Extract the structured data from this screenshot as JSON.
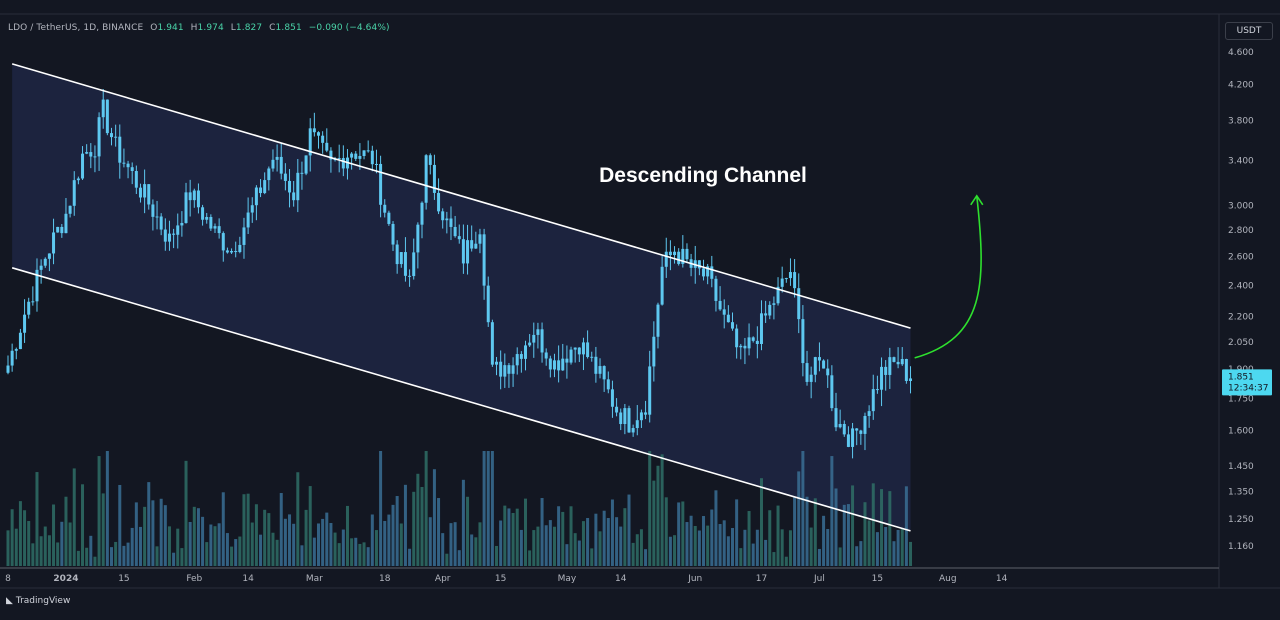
{
  "header": {
    "symbol": "LDO / TetherUS, 1D, BINANCE",
    "o_label": "O",
    "o_value": "1.941",
    "h_label": "H",
    "h_value": "1.974",
    "l_label": "L",
    "l_value": "1.827",
    "c_label": "C",
    "c_value": "1.851",
    "change": "−0.090 (−4.64%)"
  },
  "currency": "USDT",
  "brand": "TradingView",
  "colors": {
    "background": "#131722",
    "channel_fill": "#1c2440",
    "channel_line": "#ffffff",
    "candle": "#5ec8f0",
    "volume": "#3a6f94",
    "volume_alt": "#2f6f66",
    "arrow": "#2ee02e",
    "price_label_bg": "#4dd8f0"
  },
  "chart_data": {
    "type": "candlestick",
    "annotation": "Descending Channel",
    "y_scale": "log",
    "y_ticks": [
      "4.600",
      "4.200",
      "3.800",
      "3.400",
      "3.000",
      "2.800",
      "2.600",
      "2.400",
      "2.200",
      "2.050",
      "1.900",
      "1.750",
      "1.600",
      "1.450",
      "1.350",
      "1.250",
      "1.160"
    ],
    "x_ticks": [
      "8",
      "2024",
      "15",
      "Feb",
      "14",
      "Mar",
      "18",
      "Apr",
      "15",
      "May",
      "14",
      "Jun",
      "17",
      "Jul",
      "15",
      "Aug",
      "14"
    ],
    "x_tick_dates": [
      "2023-12-18",
      "2024-01-01",
      "2024-01-15",
      "2024-02-01",
      "2024-02-14",
      "2024-03-01",
      "2024-03-18",
      "2024-04-01",
      "2024-04-15",
      "2024-05-01",
      "2024-05-14",
      "2024-06-01",
      "2024-06-17",
      "2024-07-01",
      "2024-07-15",
      "2024-08-01",
      "2024-08-14"
    ],
    "last_price": "1.851",
    "countdown": "12:34:37",
    "channel_upper": [
      [
        "2023-12-19",
        4.45
      ],
      [
        "2024-07-23",
        2.13
      ]
    ],
    "channel_lower": [
      [
        "2023-12-19",
        2.52
      ],
      [
        "2024-07-23",
        1.21
      ]
    ],
    "close_series": [
      [
        "2023-12-18",
        1.92
      ],
      [
        "2023-12-22",
        2.22
      ],
      [
        "2023-12-27",
        2.6
      ],
      [
        "2024-01-01",
        2.93
      ],
      [
        "2024-01-05",
        3.45
      ],
      [
        "2024-01-08",
        3.55
      ],
      [
        "2024-01-10",
        3.9
      ],
      [
        "2024-01-13",
        3.52
      ],
      [
        "2024-01-18",
        3.2
      ],
      [
        "2024-01-22",
        2.96
      ],
      [
        "2024-01-26",
        2.72
      ],
      [
        "2024-01-31",
        3.1
      ],
      [
        "2024-02-06",
        2.78
      ],
      [
        "2024-02-10",
        2.65
      ],
      [
        "2024-02-15",
        2.97
      ],
      [
        "2024-02-20",
        3.42
      ],
      [
        "2024-02-25",
        3.1
      ],
      [
        "2024-02-29",
        3.65
      ],
      [
        "2024-03-05",
        3.35
      ],
      [
        "2024-03-10",
        3.5
      ],
      [
        "2024-03-15",
        3.42
      ],
      [
        "2024-03-20",
        2.7
      ],
      [
        "2024-03-24",
        2.4
      ],
      [
        "2024-03-28",
        3.38
      ],
      [
        "2024-04-02",
        2.85
      ],
      [
        "2024-04-06",
        2.6
      ],
      [
        "2024-04-10",
        2.85
      ],
      [
        "2024-04-13",
        1.88
      ],
      [
        "2024-04-18",
        1.95
      ],
      [
        "2024-04-23",
        2.12
      ],
      [
        "2024-04-28",
        1.93
      ],
      [
        "2024-05-04",
        2.05
      ],
      [
        "2024-05-09",
        1.86
      ],
      [
        "2024-05-13",
        1.7
      ],
      [
        "2024-05-16",
        1.64
      ],
      [
        "2024-05-20",
        1.73
      ],
      [
        "2024-05-24",
        2.52
      ],
      [
        "2024-05-27",
        2.65
      ],
      [
        "2024-05-31",
        2.52
      ],
      [
        "2024-06-04",
        2.45
      ],
      [
        "2024-06-08",
        2.18
      ],
      [
        "2024-06-12",
        1.96
      ],
      [
        "2024-06-16",
        2.1
      ],
      [
        "2024-06-20",
        2.3
      ],
      [
        "2024-06-24",
        2.5
      ],
      [
        "2024-06-28",
        1.85
      ],
      [
        "2024-07-02",
        1.95
      ],
      [
        "2024-07-05",
        1.65
      ],
      [
        "2024-07-09",
        1.56
      ],
      [
        "2024-07-12",
        1.68
      ],
      [
        "2024-07-16",
        1.88
      ],
      [
        "2024-07-20",
        1.94
      ],
      [
        "2024-07-23",
        1.851
      ]
    ],
    "forecast_arrow": [
      [
        "2024-07-24",
        1.96
      ],
      [
        "2024-08-08",
        3.08
      ]
    ]
  }
}
